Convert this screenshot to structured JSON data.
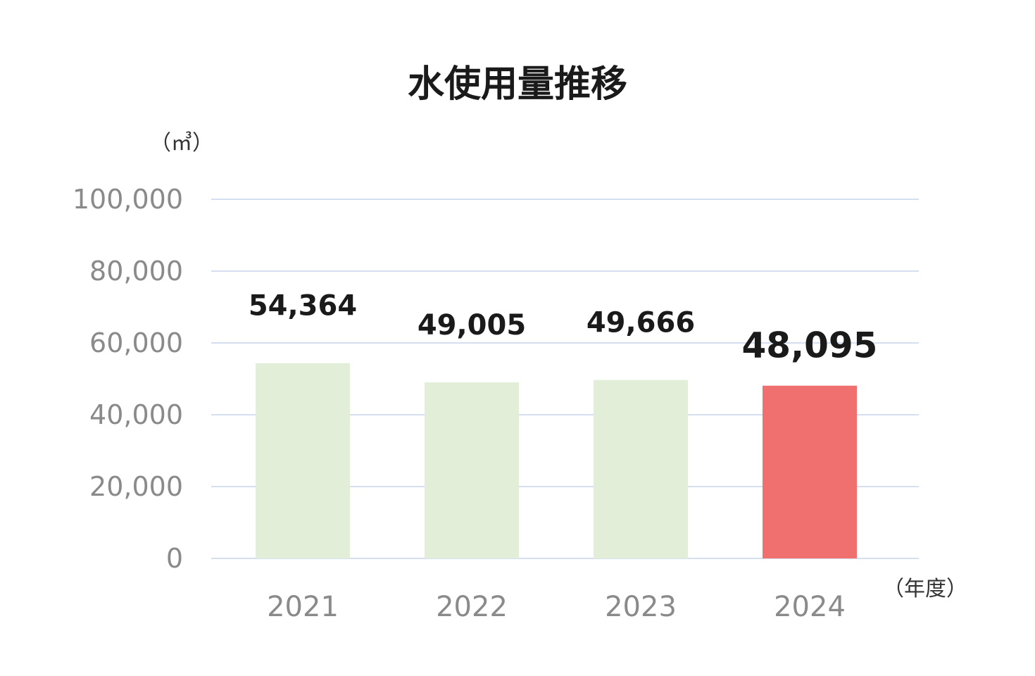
{
  "chart_data": {
    "type": "bar",
    "title": "水使用量推移",
    "ylabel": "（㎥）",
    "xlabel": "（年度）",
    "categories": [
      "2021",
      "2022",
      "2023",
      "2024"
    ],
    "values": [
      54364,
      49005,
      49666,
      48095
    ],
    "data_labels": [
      "54,364",
      "49,005",
      "49,666",
      "48,095"
    ],
    "ylim": [
      0,
      100000
    ],
    "yticks": [
      0,
      20000,
      40000,
      60000,
      80000,
      100000
    ],
    "ytick_labels": [
      "0",
      "20,000",
      "40,000",
      "60,000",
      "80,000",
      "100,000"
    ],
    "grid": true,
    "highlight_index": 3,
    "colors": {
      "bar": "#e2eed8",
      "highlight": "#f07070",
      "grid": "#d5dff0"
    }
  }
}
